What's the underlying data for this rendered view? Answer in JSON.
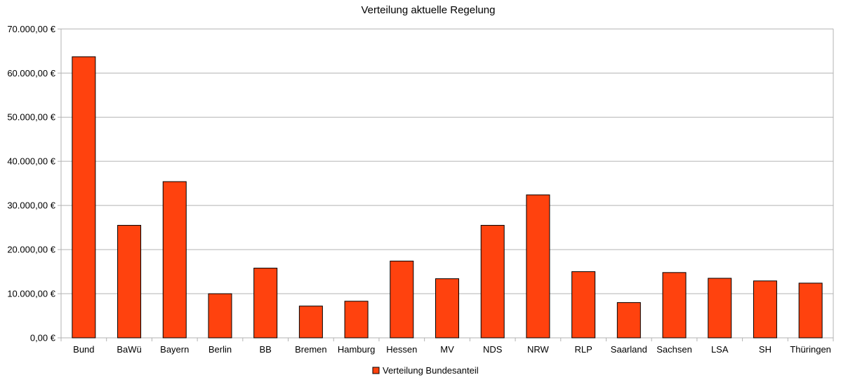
{
  "chart_data": {
    "type": "bar",
    "title": "Verteilung aktuelle Regelung",
    "xlabel": "",
    "ylabel": "",
    "ylim": [
      0,
      70000
    ],
    "yticks": [
      0,
      10000,
      20000,
      30000,
      40000,
      50000,
      60000,
      70000
    ],
    "ytick_labels": [
      "0,00 €",
      "10.000,00 €",
      "20.000,00 €",
      "30.000,00 €",
      "40.000,00 €",
      "50.000,00 €",
      "60.000,00 €",
      "70.000,00 €"
    ],
    "grid": true,
    "legend_position": "bottom",
    "categories": [
      "Bund",
      "BaWü",
      "Bayern",
      "Berlin",
      "BB",
      "Bremen",
      "Hamburg",
      "Hessen",
      "MV",
      "NDS",
      "NRW",
      "RLP",
      "Saarland",
      "Sachsen",
      "LSA",
      "SH",
      "Thüringen"
    ],
    "series": [
      {
        "name": "Verteilung Bundesanteil",
        "color": "#ff420e",
        "values": [
          63700,
          25500,
          35400,
          10000,
          15800,
          7200,
          8300,
          17400,
          13400,
          25500,
          32400,
          15000,
          8000,
          14800,
          13500,
          12900,
          12400
        ]
      }
    ]
  }
}
